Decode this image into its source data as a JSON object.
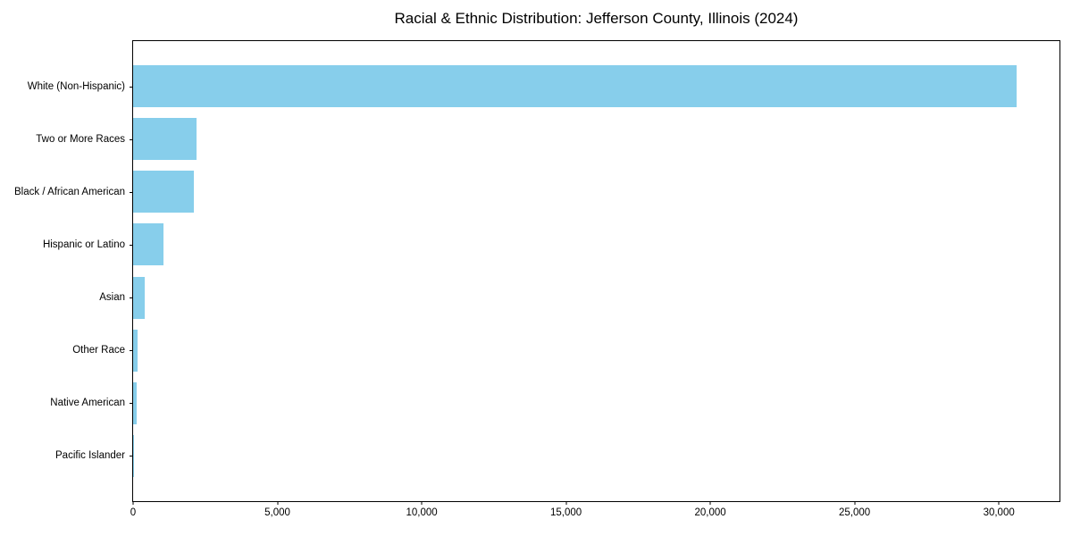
{
  "chart_data": {
    "type": "bar",
    "orientation": "horizontal",
    "title": "Racial & Ethnic Distribution: Jefferson County, Illinois (2024)",
    "categories": [
      "White (Non-Hispanic)",
      "Two or More Races",
      "Black / African American",
      "Hispanic or Latino",
      "Asian",
      "Other Race",
      "Native American",
      "Pacific Islander"
    ],
    "values": [
      30600,
      2200,
      2120,
      1050,
      390,
      150,
      110,
      15
    ],
    "title_position": "top-center",
    "xlabel": "",
    "ylabel": "",
    "xlim": [
      0,
      32100
    ],
    "x_ticks": [
      0,
      5000,
      10000,
      15000,
      20000,
      25000,
      30000
    ],
    "x_tick_labels": [
      "0",
      "5,000",
      "10,000",
      "15,000",
      "20,000",
      "25,000",
      "30,000"
    ],
    "bar_color": "#87CEEB",
    "grid": false,
    "legend": false
  }
}
